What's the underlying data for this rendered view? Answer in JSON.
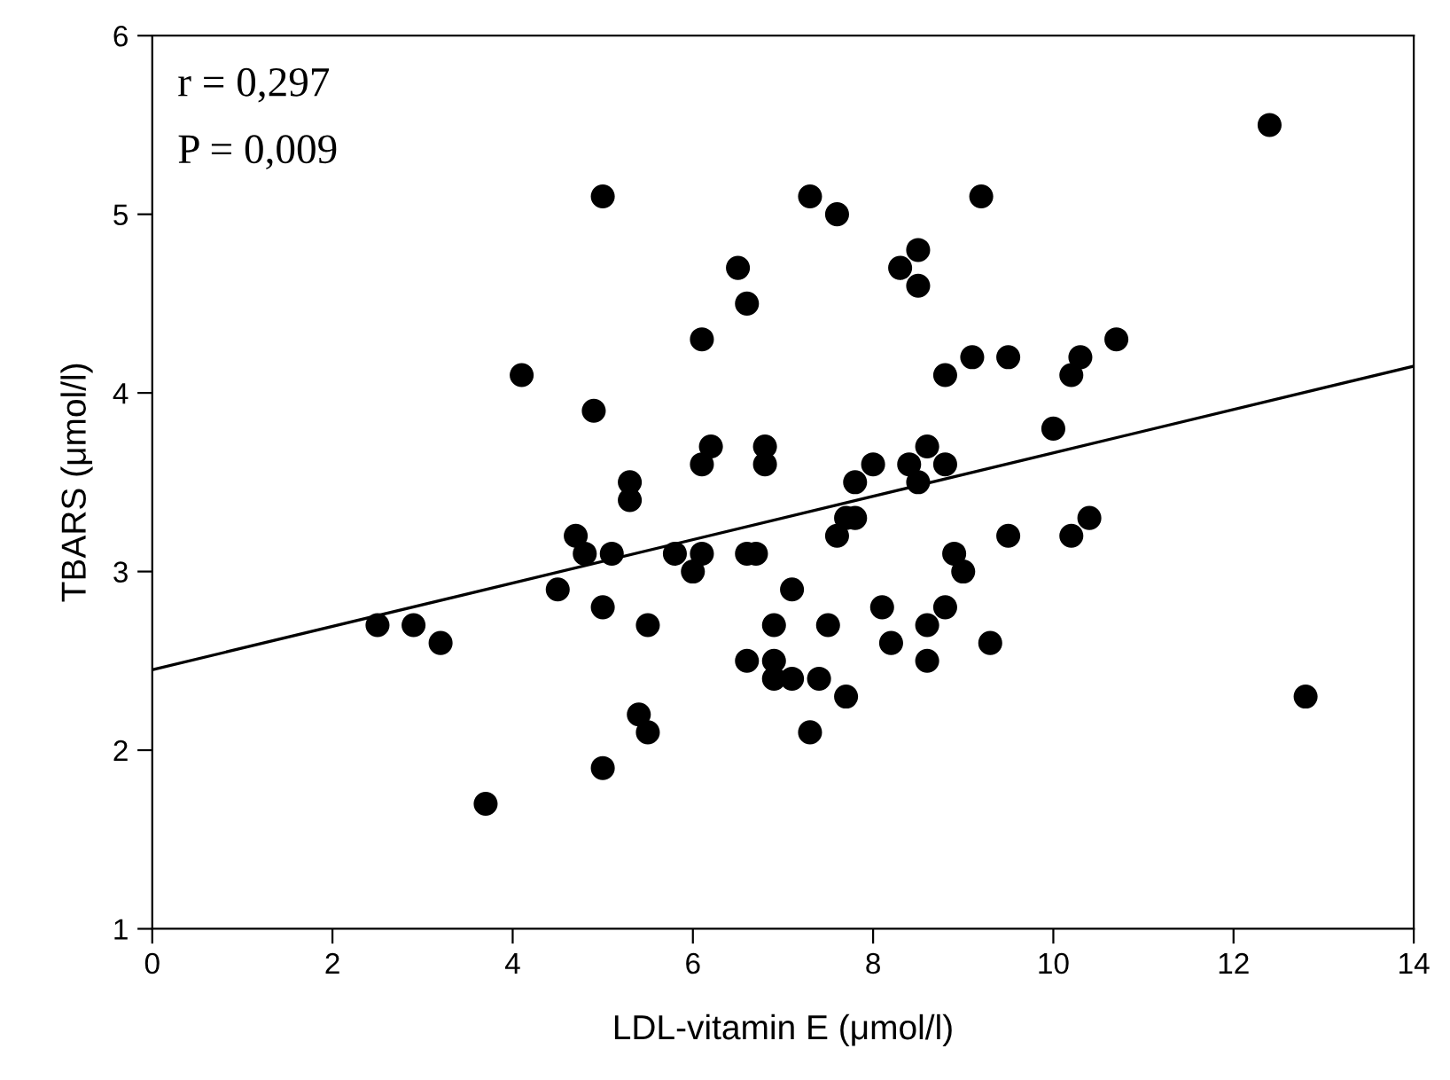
{
  "chart_data": {
    "type": "scatter",
    "xlabel": "LDL-vitamin E (μmol/l)",
    "ylabel": "TBARS (μmol/l)",
    "annotations": [
      "r = 0,297",
      "P = 0,009"
    ],
    "xlim": [
      0,
      14
    ],
    "xticks": [
      0,
      2,
      4,
      6,
      8,
      10,
      12,
      14
    ],
    "ylim": [
      1,
      6
    ],
    "yticks": [
      1,
      2,
      3,
      4,
      5,
      6
    ],
    "grid": false,
    "marker": "circle",
    "series": [
      {
        "color": "#000000",
        "x": [
          2.5,
          2.9,
          3.2,
          3.7,
          4.1,
          4.5,
          4.7,
          4.8,
          4.9,
          5.0,
          5.0,
          5.0,
          5.1,
          5.3,
          5.3,
          5.4,
          5.5,
          5.5,
          5.8,
          6.0,
          6.1,
          6.1,
          6.1,
          6.2,
          6.5,
          6.6,
          6.6,
          6.6,
          6.7,
          6.8,
          6.8,
          6.9,
          6.9,
          6.9,
          7.1,
          7.1,
          7.3,
          7.3,
          7.4,
          7.5,
          7.6,
          7.6,
          7.7,
          7.7,
          7.8,
          7.8,
          8.0,
          8.1,
          8.2,
          8.3,
          8.4,
          8.5,
          8.5,
          8.5,
          8.6,
          8.6,
          8.6,
          8.8,
          8.8,
          8.8,
          8.9,
          9.0,
          9.1,
          9.2,
          9.3,
          9.5,
          9.5,
          10.0,
          10.2,
          10.2,
          10.3,
          10.4,
          10.7,
          12.4,
          12.8
        ],
        "values": [
          2.7,
          2.7,
          2.6,
          1.7,
          4.1,
          2.9,
          3.2,
          3.1,
          3.9,
          5.1,
          2.8,
          1.9,
          3.1,
          3.5,
          3.4,
          2.2,
          2.7,
          2.1,
          3.1,
          3.0,
          4.3,
          3.6,
          3.1,
          3.7,
          4.7,
          4.5,
          3.1,
          2.5,
          3.1,
          3.7,
          3.6,
          2.7,
          2.5,
          2.4,
          2.9,
          2.4,
          5.1,
          2.1,
          2.4,
          2.7,
          5.0,
          3.2,
          3.3,
          2.3,
          3.5,
          3.3,
          3.6,
          2.8,
          2.6,
          4.7,
          3.6,
          4.8,
          4.6,
          3.5,
          3.7,
          2.7,
          2.5,
          4.1,
          3.6,
          2.8,
          3.1,
          3.0,
          4.2,
          5.1,
          2.6,
          4.2,
          3.2,
          3.8,
          4.1,
          3.2,
          4.2,
          3.3,
          4.3,
          5.5,
          2.3
        ]
      },
      {
        "type": "line",
        "color": "#000000",
        "marker": "none",
        "line_style": "solid",
        "x": [
          0,
          14
        ],
        "values": [
          2.45,
          4.15
        ]
      }
    ]
  }
}
